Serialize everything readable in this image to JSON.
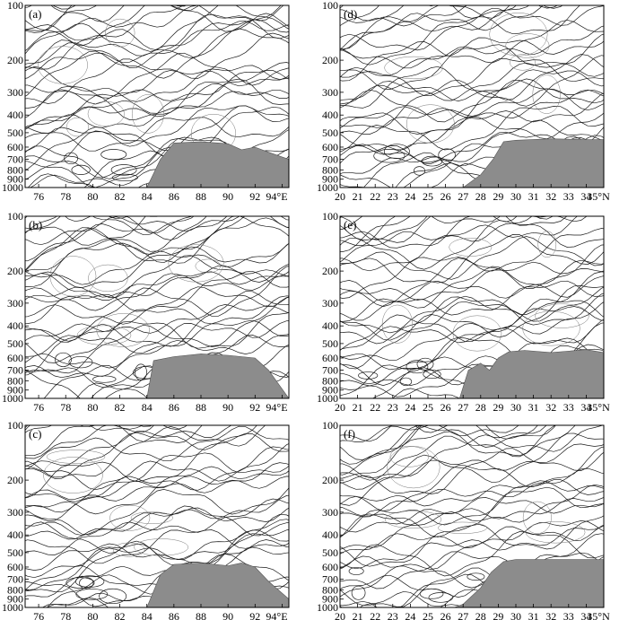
{
  "chart_data": [
    {
      "panel": "(a)",
      "type": "streamline-cross-section",
      "x_ticks": [
        "76",
        "78",
        "80",
        "82",
        "84",
        "86",
        "88",
        "90",
        "92",
        "94°E"
      ],
      "y_ticks": [
        "100",
        "200",
        "300",
        "400",
        "500",
        "600",
        "700",
        "800",
        "900",
        "1000"
      ],
      "terrain_profile": {
        "x": [
          76,
          78,
          80,
          82,
          84,
          85,
          86,
          88,
          90,
          91,
          92,
          93,
          94.5
        ],
        "p": [
          1000,
          1000,
          1000,
          1000,
          1000,
          700,
          570,
          560,
          575,
          620,
          600,
          640,
          700
        ]
      }
    },
    {
      "panel": "(b)",
      "type": "streamline-cross-section",
      "x_ticks": [
        "76",
        "78",
        "80",
        "82",
        "84",
        "86",
        "88",
        "90",
        "92",
        "94°E"
      ],
      "y_ticks": [
        "100",
        "200",
        "300",
        "400",
        "500",
        "600",
        "700",
        "800",
        "900",
        "1000"
      ],
      "terrain_profile": {
        "x": [
          76,
          78,
          80,
          82,
          84,
          84.5,
          86,
          88,
          90,
          92,
          93,
          94.5
        ],
        "p": [
          1000,
          1000,
          1000,
          1000,
          1000,
          620,
          590,
          570,
          580,
          600,
          700,
          1000
        ]
      }
    },
    {
      "panel": "(c)",
      "type": "streamline-cross-section",
      "x_ticks": [
        "76",
        "78",
        "80",
        "82",
        "84",
        "86",
        "88",
        "90",
        "92",
        "94°E"
      ],
      "y_ticks": [
        "100",
        "200",
        "300",
        "400",
        "500",
        "600",
        "700",
        "800",
        "900",
        "1000"
      ],
      "terrain_profile": {
        "x": [
          76,
          78,
          80,
          82,
          84,
          85,
          86,
          88,
          90,
          91,
          92,
          93,
          94.5
        ],
        "p": [
          1000,
          1000,
          1000,
          1000,
          1000,
          660,
          580,
          570,
          590,
          570,
          600,
          720,
          900
        ]
      }
    },
    {
      "panel": "(d)",
      "type": "streamline-cross-section",
      "x_ticks": [
        "20",
        "21",
        "22",
        "23",
        "24",
        "25",
        "26",
        "27",
        "28",
        "29",
        "30",
        "31",
        "32",
        "33",
        "34",
        "35°N"
      ],
      "y_ticks": [
        "100",
        "200",
        "300",
        "400",
        "500",
        "600",
        "700",
        "800",
        "900",
        "1000"
      ],
      "terrain_profile": {
        "x": [
          20,
          27,
          28,
          28.7,
          29.3,
          30,
          32,
          34,
          35
        ],
        "p": [
          1000,
          1000,
          850,
          700,
          560,
          550,
          540,
          545,
          545
        ]
      }
    },
    {
      "panel": "(e)",
      "type": "streamline-cross-section",
      "x_ticks": [
        "20",
        "21",
        "22",
        "23",
        "24",
        "25",
        "26",
        "27",
        "28",
        "29",
        "30",
        "31",
        "32",
        "33",
        "34",
        "35°N"
      ],
      "y_ticks": [
        "100",
        "200",
        "300",
        "400",
        "500",
        "600",
        "700",
        "800",
        "900",
        "1000"
      ],
      "terrain_profile": {
        "x": [
          20,
          26.8,
          27.3,
          28,
          28.5,
          29,
          29.6,
          30.5,
          32,
          34,
          35
        ],
        "p": [
          1000,
          1000,
          700,
          640,
          700,
          600,
          555,
          545,
          560,
          540,
          560
        ]
      }
    },
    {
      "panel": "(f)",
      "type": "streamline-cross-section",
      "x_ticks": [
        "20",
        "21",
        "22",
        "23",
        "24",
        "25",
        "26",
        "27",
        "28",
        "29",
        "30",
        "31",
        "32",
        "33",
        "34",
        "35°N"
      ],
      "y_ticks": [
        "100",
        "200",
        "300",
        "400",
        "500",
        "600",
        "700",
        "800",
        "900",
        "1000"
      ],
      "terrain_profile": {
        "x": [
          20,
          26.5,
          27,
          28,
          28.6,
          29.3,
          30,
          32,
          34,
          35
        ],
        "p": [
          1000,
          1000,
          960,
          780,
          640,
          560,
          545,
          545,
          545,
          545
        ]
      }
    }
  ]
}
